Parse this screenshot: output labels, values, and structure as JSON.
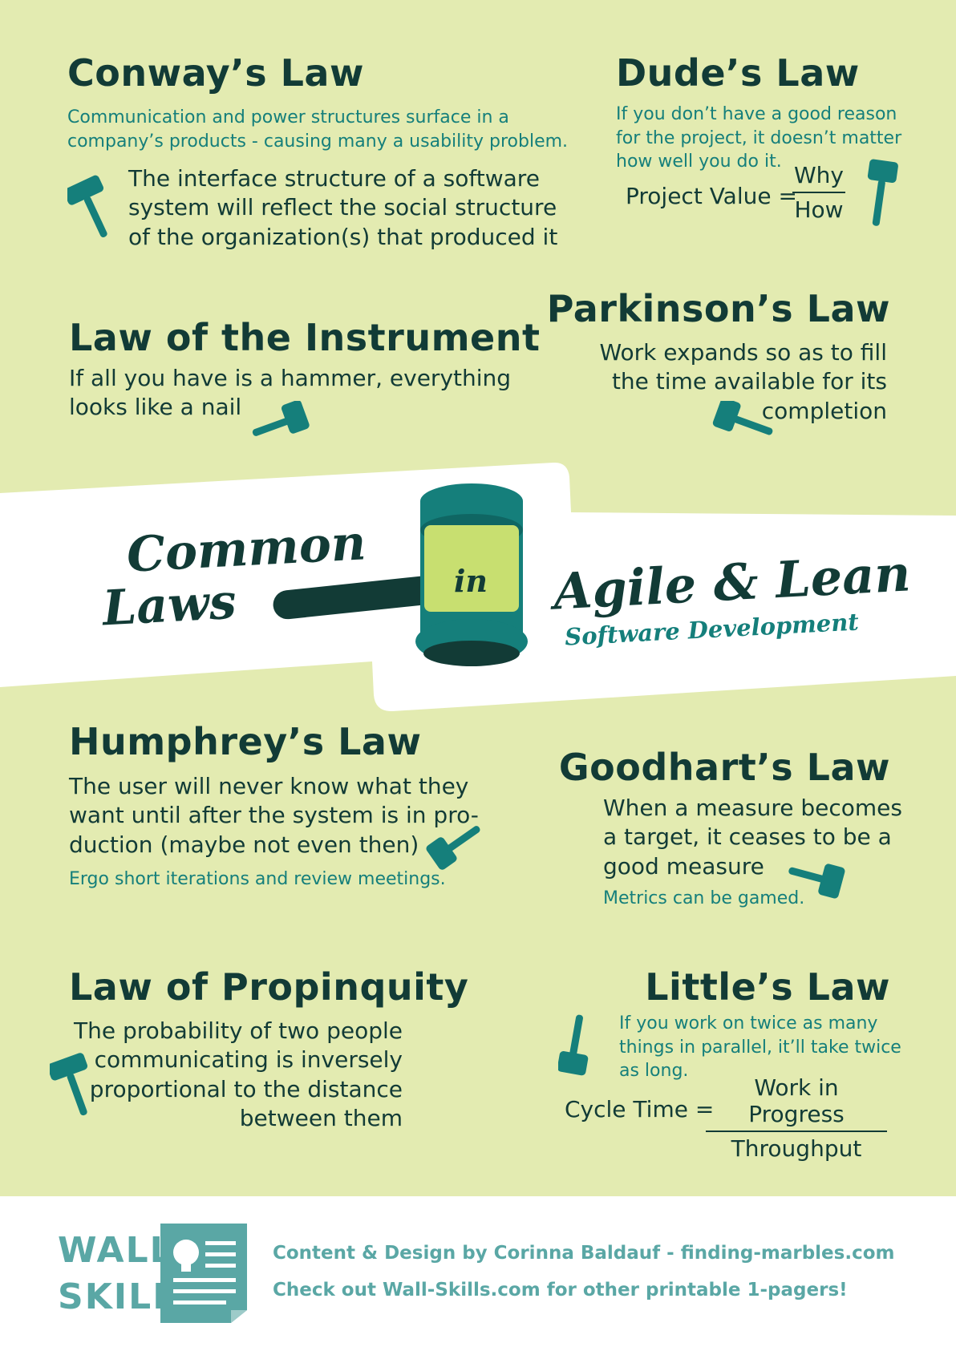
{
  "colors": {
    "background": "#e3ebb1",
    "dark": "#123b36",
    "teal": "#157f7b",
    "accent_green": "#c8df70",
    "footer_teal": "#5aa7a5"
  },
  "conway": {
    "title": "Conway’s Law",
    "subtitle_lines": [
      "Communication and power structures surface in a",
      "company’s products - causing many a usability problem."
    ],
    "body_lines": [
      "The interface structure of a software",
      "system will reflect the social structure",
      "of the organization(s) that produced it"
    ]
  },
  "dude": {
    "title": "Dude’s Law",
    "subtitle_lines": [
      "If you don’t have a good reason",
      "for the project, it doesn’t matter",
      "how well you do it."
    ],
    "formula_label": "Project Value =",
    "numerator": "Why",
    "denominator": "How"
  },
  "instrument": {
    "title": "Law of the Instrument",
    "body_lines": [
      "If all you have is a hammer, everything",
      "looks like a nail"
    ]
  },
  "parkinson": {
    "title": "Parkinson’s Law",
    "body_lines": [
      "Work expands so as to fill",
      "the time available for its",
      "completion"
    ]
  },
  "banner": {
    "common": "Common",
    "laws": "Laws",
    "in": "in",
    "agile": "Agile & Lean",
    "software": "Software Development"
  },
  "humphrey": {
    "title": "Humphrey’s Law",
    "body_lines": [
      "The user will never know what they",
      "want until after the system is in pro-",
      "duction (maybe not even then)"
    ],
    "subtitle": "Ergo short iterations and review meetings."
  },
  "goodhart": {
    "title": "Goodhart’s Law",
    "body_lines": [
      "When a measure becomes",
      "a target, it ceases to be a",
      "good measure"
    ],
    "subtitle": "Metrics can be gamed."
  },
  "propinquity": {
    "title": "Law of Propinquity",
    "body_lines": [
      "The probability of two people",
      "communicating is inversely",
      "proportional to the distance",
      "between them"
    ]
  },
  "little": {
    "title": "Little’s Law",
    "subtitle_lines": [
      "If you work on twice as many",
      "things in parallel, it’ll take twice",
      "as long."
    ],
    "formula_label": "Cycle Time =",
    "numerator": "Work in Progress",
    "denominator": "Throughput"
  },
  "footer": {
    "logo_top": "WALL-",
    "logo_bottom": "SKILLS",
    "credit": "Content & Design by Corinna Baldauf - finding-marbles.com",
    "promo": "Check out Wall-Skills.com for other printable 1-pagers!"
  }
}
